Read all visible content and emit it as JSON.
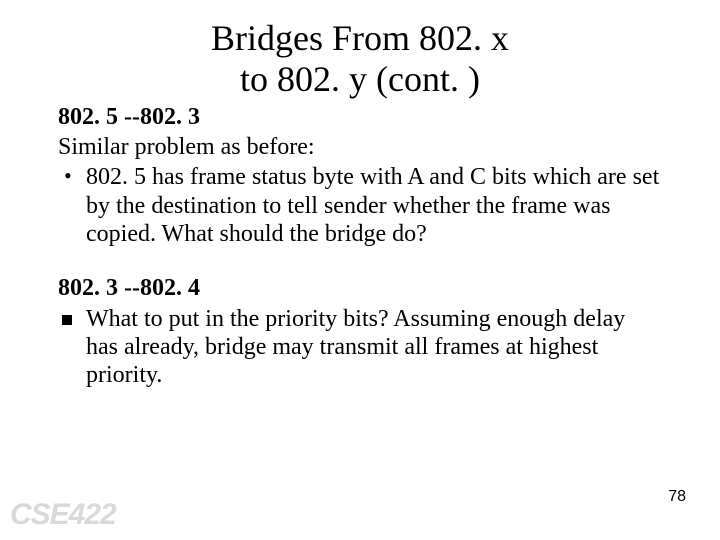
{
  "title_line1": "Bridges From 802. x",
  "title_line2": "to 802. y (cont. )",
  "section1": {
    "heading": "802. 5 --802. 3",
    "lead": "Similar problem as before:",
    "bullet": "802. 5 has frame status byte with A and C bits which are set by the destination to tell sender whether the frame was copied.  What should the bridge do?"
  },
  "section2": {
    "heading": "802. 3 --802. 4",
    "bullet": "What to put in the priority bits?  Assuming enough delay has already, bridge may transmit all frames at highest priority."
  },
  "page_number": "78",
  "course_code": "CSE422",
  "colors": {
    "text": "#000000",
    "background": "#ffffff",
    "watermark": "#d9d9d9"
  }
}
